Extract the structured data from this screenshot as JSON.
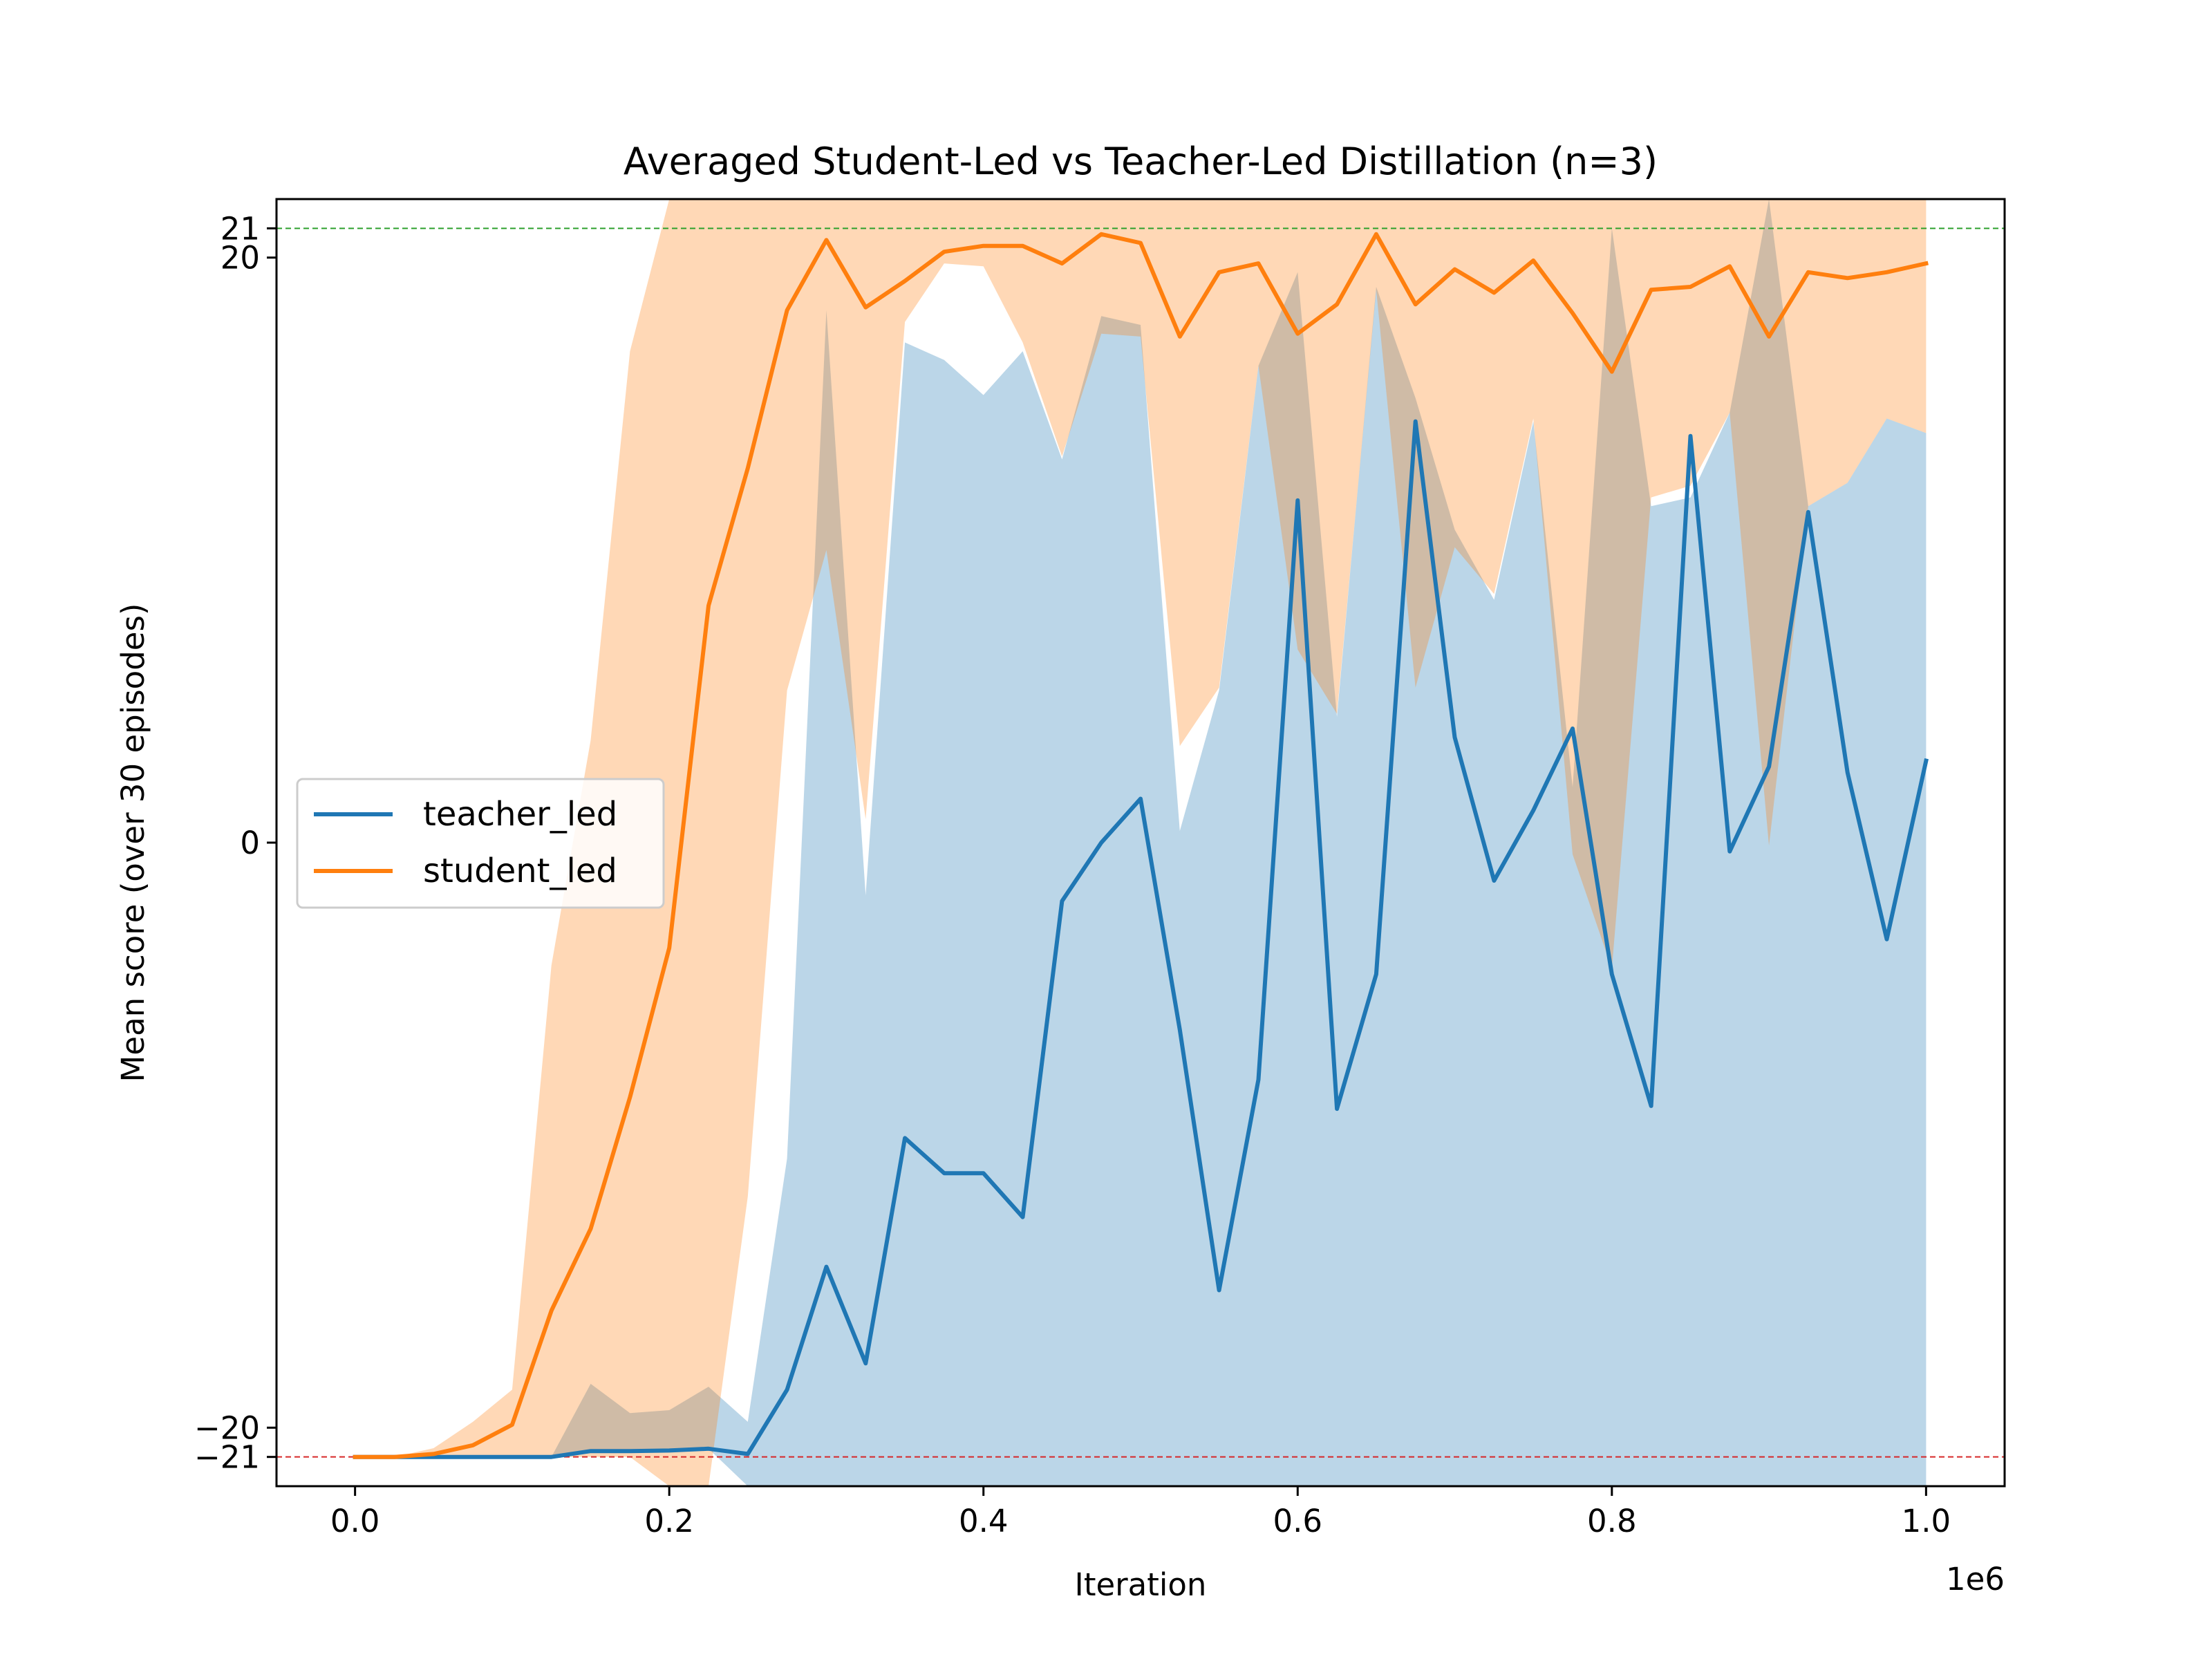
{
  "chart_data": {
    "type": "line",
    "title": "Averaged Student-Led vs Teacher-Led Distillation (n=3)",
    "xlabel": "Iteration",
    "ylabel": "Mean score (over 30 episodes)",
    "x_offset_text": "1e6",
    "xlim": [
      -50000,
      1050000
    ],
    "ylim": [
      -22,
      22
    ],
    "x_ticks": [
      0,
      200000,
      400000,
      600000,
      800000,
      1000000
    ],
    "x_tick_labels": [
      "0.0",
      "0.2",
      "0.4",
      "0.6",
      "0.8",
      "1.0"
    ],
    "y_ticks": [
      -21,
      -20,
      0,
      20,
      21
    ],
    "y_tick_labels": [
      "−21",
      "−20",
      "0",
      "20",
      "21"
    ],
    "hlines": [
      {
        "y": 21,
        "color": "#2ca02c",
        "style": "dashed"
      },
      {
        "y": -21,
        "color": "#d62728",
        "style": "dashed"
      }
    ],
    "legend_position": "center-left",
    "grid": false,
    "x": [
      0,
      25000,
      50000,
      75000,
      100000,
      125000,
      150000,
      175000,
      200000,
      225000,
      250000,
      275000,
      300000,
      325000,
      350000,
      375000,
      400000,
      425000,
      450000,
      475000,
      500000,
      525000,
      550000,
      575000,
      600000,
      625000,
      650000,
      675000,
      700000,
      725000,
      750000,
      775000,
      800000,
      825000,
      850000,
      875000,
      900000,
      925000,
      950000,
      975000,
      1000000
    ],
    "series": [
      {
        "name": "teacher_led",
        "color": "#1f77b4",
        "values": [
          -21,
          -21,
          -21,
          -21,
          -21,
          -21,
          -20.8,
          -20.8,
          -20.78,
          -20.72,
          -20.9,
          -18.7,
          -14.5,
          -17.8,
          -10.1,
          -11.3,
          -11.3,
          -12.8,
          -2,
          0,
          1.5,
          -6.4,
          -15.3,
          -8.1,
          11.7,
          -9.1,
          -4.5,
          14.4,
          3.6,
          -1.3,
          1.1,
          3.9,
          -4.5,
          -9,
          13.9,
          -0.3,
          2.6,
          11.3,
          2.4,
          -3.3,
          2.8
        ],
        "band_lower": [
          -21,
          -21,
          -21,
          -21,
          -21,
          -21,
          -20.8,
          -20.8,
          -20.78,
          -20.72,
          -22,
          -22,
          -22,
          -22,
          -22,
          -22,
          -22,
          -22,
          -22,
          -22,
          -22,
          -22,
          -22,
          -22,
          -22,
          -22,
          -22,
          -22,
          -22,
          -22,
          -22,
          -22,
          -22,
          -22,
          -22,
          -22,
          -22,
          -22,
          -22,
          -22,
          -22
        ],
        "band_upper": [
          -21,
          -21,
          -21,
          -21,
          -21,
          -21,
          -18.5,
          -19.5,
          -19.4,
          -18.6,
          -19.8,
          -10.8,
          18.2,
          -1.8,
          17.1,
          16.5,
          15.3,
          16.8,
          13.1,
          18,
          17.7,
          0.4,
          5.2,
          16.3,
          19.5,
          4.3,
          19,
          15.2,
          10.7,
          8.3,
          14.4,
          1.9,
          21,
          11.5,
          11.8,
          14.7,
          22,
          11.5,
          12.3,
          14.5,
          14
        ]
      },
      {
        "name": "student_led",
        "color": "#ff7f0e",
        "values": [
          -21,
          -21,
          -20.9,
          -20.6,
          -19.9,
          -16,
          -13.2,
          -8.7,
          -3.6,
          8.1,
          12.8,
          18.2,
          20.6,
          18.3,
          19.2,
          20.2,
          20.4,
          20.4,
          19.8,
          20.8,
          20.5,
          17.3,
          19.5,
          19.8,
          17.4,
          18.4,
          20.8,
          18.4,
          19.6,
          18.8,
          19.9,
          18.1,
          16.1,
          18.9,
          19,
          19.7,
          17.3,
          19.5,
          19.3,
          19.5,
          19.8
        ],
        "band_lower": [
          -21,
          -21,
          -21,
          -21,
          -21,
          -21,
          -21,
          -21,
          -22,
          -22,
          -12.1,
          5.2,
          10,
          0.8,
          17.8,
          19.8,
          19.7,
          17.1,
          13.2,
          17.4,
          17.3,
          3.3,
          5.3,
          16.3,
          6.6,
          4.4,
          18.9,
          5.3,
          10.1,
          8.5,
          14.5,
          -0.4,
          -4.3,
          11.8,
          12.2,
          14.7,
          -0.1,
          11.5,
          12.3,
          14.5,
          14
        ],
        "band_upper": [
          -21,
          -21,
          -20.7,
          -19.8,
          -18.7,
          -4.2,
          3.5,
          16.8,
          22,
          22,
          22,
          22,
          22,
          22,
          22,
          22,
          22,
          22,
          22,
          22,
          22,
          22,
          22,
          22,
          22,
          22,
          22,
          22,
          22,
          22,
          22,
          22,
          22,
          22,
          22,
          22,
          22,
          22,
          22,
          22,
          22
        ]
      }
    ]
  }
}
